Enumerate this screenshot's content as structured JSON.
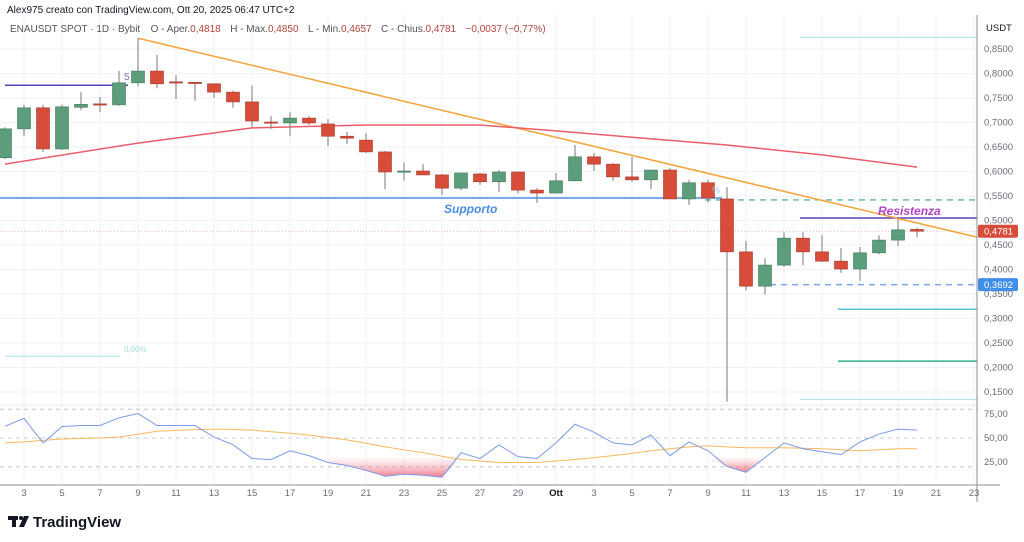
{
  "header": {
    "author_line": "Alex975 creato con TradingView.com, Ott 20, 2025 06:47 UTC+2"
  },
  "legend": {
    "symbol": "ENAUSDT SPOT · 1D · Bybit",
    "open_label": "O - Aper.",
    "open": "0,4818",
    "high_label": "H - Max.",
    "high": "0,4850",
    "low_label": "L - Min.",
    "low": "0,4657",
    "close_label": "C - Chius.",
    "close": "0,4781",
    "change": "−0,0037 (−0,77%)"
  },
  "price_axis": {
    "currency": "USDT",
    "ticks": [
      "0,8500",
      "0,8000",
      "0,7500",
      "0,7000",
      "0,6500",
      "0,6000",
      "0,5500",
      "0,5000",
      "0,4500",
      "0,4000",
      "0,3500",
      "0,3000",
      "0,2500",
      "0,2000",
      "0,1500"
    ],
    "tick_values": [
      0.85,
      0.8,
      0.75,
      0.7,
      0.65,
      0.6,
      0.55,
      0.5,
      0.45,
      0.4,
      0.35,
      0.3,
      0.25,
      0.2,
      0.15
    ],
    "last_price_label": "0,4781",
    "last_price": 0.4781,
    "marker_label": "0,3692",
    "marker_price": 0.3692
  },
  "rsi_axis": {
    "ticks": [
      "75,00",
      "50,00",
      "25,00"
    ],
    "tick_values": [
      75,
      50,
      25
    ],
    "bands": [
      80,
      50,
      20
    ]
  },
  "time_axis": {
    "labels": [
      "3",
      "5",
      "7",
      "9",
      "11",
      "13",
      "15",
      "17",
      "19",
      "21",
      "23",
      "25",
      "27",
      "29",
      "Ott",
      "3",
      "5",
      "7",
      "9",
      "11",
      "13",
      "15",
      "17",
      "19",
      "21",
      "23"
    ],
    "label_day_index": [
      1,
      3,
      5,
      7,
      9,
      11,
      13,
      15,
      17,
      19,
      21,
      23,
      25,
      27,
      29,
      31,
      33,
      35,
      37,
      39,
      41,
      43,
      45,
      47,
      49,
      51
    ]
  },
  "annotations": {
    "support_label": "Supporto",
    "resistance_label": "Resistenza",
    "fib_label_left": "5",
    "fib_zero_label": "0,00%",
    "fib_pct_label": "%"
  },
  "levels": {
    "upper_purple": 0.776,
    "support": 0.546,
    "resistance": 0.505,
    "green_dashed": 0.542,
    "cyan_top": 0.874,
    "cyan_mid": 0.319,
    "green_low": 0.213,
    "cyan_low": 0.135,
    "cyan_left": 0.223,
    "trendline_start": 0.872,
    "trendline_end": 0.466
  },
  "colors": {
    "up": "#5c9e7b",
    "down": "#d84c3a",
    "ma": "#ec5d6b",
    "trend": "#f5a43a",
    "support": "#4a8fe2",
    "resistance": "#5a3fb8",
    "resistance_text": "#b043c4",
    "rsi": "#7b9be6",
    "rsi_ma": "#f5b95a",
    "last_price_bg": "#d84c3a",
    "marker_bg": "#3f8fe8"
  },
  "chart_data": {
    "type": "candlestick",
    "first_day": "Sep 2",
    "candles_ohlc": [
      [
        0.628,
        0.69,
        0.625,
        0.687
      ],
      [
        0.687,
        0.736,
        0.672,
        0.73
      ],
      [
        0.73,
        0.736,
        0.64,
        0.646
      ],
      [
        0.646,
        0.737,
        0.644,
        0.732
      ],
      [
        0.731,
        0.762,
        0.725,
        0.737
      ],
      [
        0.738,
        0.752,
        0.721,
        0.736
      ],
      [
        0.736,
        0.805,
        0.734,
        0.781
      ],
      [
        0.781,
        0.872,
        0.774,
        0.805
      ],
      [
        0.805,
        0.838,
        0.77,
        0.779
      ],
      [
        0.783,
        0.797,
        0.748,
        0.782
      ],
      [
        0.782,
        0.783,
        0.745,
        0.781
      ],
      [
        0.779,
        0.779,
        0.75,
        0.762
      ],
      [
        0.762,
        0.765,
        0.73,
        0.742
      ],
      [
        0.742,
        0.775,
        0.691,
        0.703
      ],
      [
        0.701,
        0.713,
        0.687,
        0.699
      ],
      [
        0.699,
        0.721,
        0.672,
        0.709
      ],
      [
        0.709,
        0.713,
        0.695,
        0.699
      ],
      [
        0.697,
        0.707,
        0.652,
        0.672
      ],
      [
        0.672,
        0.681,
        0.656,
        0.668
      ],
      [
        0.664,
        0.678,
        0.638,
        0.64
      ],
      [
        0.64,
        0.642,
        0.564,
        0.599
      ],
      [
        0.6,
        0.619,
        0.581,
        0.601
      ],
      [
        0.601,
        0.615,
        0.593,
        0.593
      ],
      [
        0.593,
        0.595,
        0.552,
        0.566
      ],
      [
        0.566,
        0.598,
        0.562,
        0.597
      ],
      [
        0.595,
        0.597,
        0.573,
        0.579
      ],
      [
        0.579,
        0.603,
        0.558,
        0.599
      ],
      [
        0.599,
        0.6,
        0.555,
        0.562
      ],
      [
        0.562,
        0.566,
        0.536,
        0.556
      ],
      [
        0.556,
        0.597,
        0.555,
        0.581
      ],
      [
        0.581,
        0.654,
        0.58,
        0.63
      ],
      [
        0.63,
        0.638,
        0.601,
        0.615
      ],
      [
        0.615,
        0.617,
        0.581,
        0.589
      ],
      [
        0.589,
        0.63,
        0.579,
        0.583
      ],
      [
        0.583,
        0.603,
        0.564,
        0.603
      ],
      [
        0.603,
        0.607,
        0.544,
        0.544
      ],
      [
        0.544,
        0.583,
        0.532,
        0.577
      ],
      [
        0.577,
        0.583,
        0.536,
        0.546
      ],
      [
        0.544,
        0.568,
        0.13,
        0.436
      ],
      [
        0.436,
        0.458,
        0.357,
        0.366
      ],
      [
        0.366,
        0.423,
        0.349,
        0.409
      ],
      [
        0.409,
        0.476,
        0.405,
        0.464
      ],
      [
        0.464,
        0.476,
        0.409,
        0.436
      ],
      [
        0.436,
        0.47,
        0.415,
        0.417
      ],
      [
        0.417,
        0.444,
        0.393,
        0.401
      ],
      [
        0.401,
        0.446,
        0.377,
        0.434
      ],
      [
        0.434,
        0.47,
        0.431,
        0.46
      ],
      [
        0.46,
        0.505,
        0.448,
        0.481
      ],
      [
        0.4818,
        0.485,
        0.4657,
        0.4781
      ]
    ],
    "moving_average": [
      [
        0,
        0.615
      ],
      [
        7,
        0.658
      ],
      [
        13,
        0.689
      ],
      [
        19,
        0.695
      ],
      [
        25,
        0.695
      ],
      [
        29,
        0.683
      ],
      [
        33,
        0.67
      ],
      [
        38,
        0.654
      ],
      [
        43,
        0.634
      ],
      [
        48,
        0.609
      ]
    ],
    "rsi": [
      62.2,
      70.4,
      44.9,
      62,
      63,
      63,
      71,
      75.5,
      63,
      63,
      63,
      51,
      43,
      28.6,
      27.5,
      36.7,
      31.6,
      24.5,
      21.4,
      16.3,
      10.2,
      12.2,
      11.2,
      9.2,
      34.7,
      28.6,
      42.9,
      30.6,
      28.6,
      44.9,
      64.3,
      56.1,
      44.9,
      42.9,
      53.1,
      31.6,
      45.9,
      36.7,
      20.4,
      14.3,
      29.6,
      44.9,
      38.8,
      35.7,
      32.7,
      45.9,
      54.1,
      59.2,
      58.2
    ],
    "rsi_ma": [
      44.9,
      46,
      47.5,
      49,
      49.5,
      50,
      51,
      54,
      57,
      58,
      58.7,
      59.2,
      59,
      58.2,
      56.5,
      55,
      53.1,
      50.5,
      48,
      44.5,
      40.8,
      37.7,
      34.7,
      31,
      27.6,
      26,
      24.5,
      24.5,
      24.5,
      26,
      27.6,
      29.6,
      31.6,
      34,
      36.7,
      38.8,
      40.8,
      41.8,
      40.8,
      39.8,
      39.8,
      39.8,
      39.3,
      38.8,
      37.7,
      36.7,
      37.7,
      38.8,
      38.8
    ],
    "ylim": [
      0.13,
      0.88
    ],
    "rsi_ylim": [
      0,
      100
    ]
  },
  "branding": {
    "logo_text": "TradingView"
  }
}
